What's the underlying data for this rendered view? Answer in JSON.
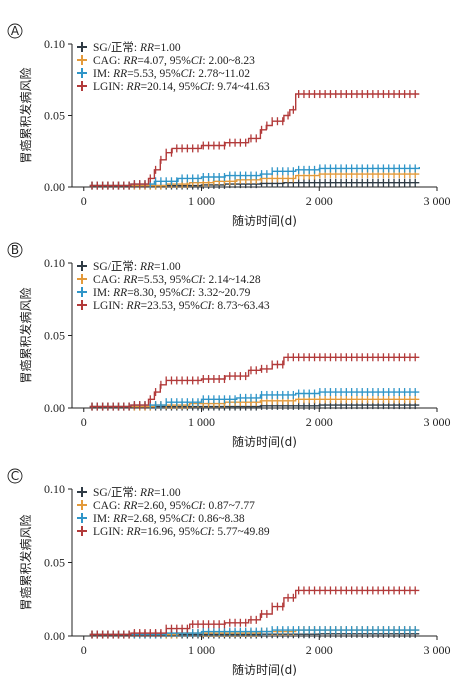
{
  "chart_data": [
    {
      "type": "line",
      "panel_label": "A",
      "xlabel": "随访时间(d)",
      "ylabel": "胃癌累积发病风险",
      "xlim": [
        -100,
        3000
      ],
      "ylim": [
        0,
        0.1
      ],
      "xticks": [
        0,
        1000,
        2000,
        3000
      ],
      "xtick_labels": [
        "0",
        "1 000",
        "2 000",
        "3 000"
      ],
      "yticks": [
        0,
        0.05,
        0.1
      ],
      "ytick_labels": [
        "0.00",
        "0.05",
        "0.10"
      ],
      "legend_position": "top-left",
      "series": [
        {
          "name": "SG/正常",
          "legend": "SG/正常: RR=1.00",
          "color": "#2f3b45",
          "x": [
            50,
            500,
            800,
            1000,
            1200,
            1500,
            1700,
            2000,
            2850
          ],
          "y": [
            0.001,
            0.001,
            0.001,
            0.0015,
            0.002,
            0.0025,
            0.003,
            0.003,
            0.003
          ]
        },
        {
          "name": "CAG",
          "legend": "CAG: RR=4.07, 95%CI: 2.00~8.23",
          "color": "#e39a3b",
          "x": [
            50,
            400,
            700,
            900,
            1100,
            1300,
            1500,
            1800,
            2000,
            2850
          ],
          "y": [
            0.001,
            0.001,
            0.002,
            0.003,
            0.004,
            0.005,
            0.006,
            0.008,
            0.009,
            0.009
          ]
        },
        {
          "name": "IM",
          "legend": "IM: RR=5.53, 95%CI: 2.78~11.02",
          "color": "#2f95c8",
          "x": [
            50,
            400,
            600,
            800,
            1000,
            1200,
            1500,
            1600,
            1800,
            2000,
            2850
          ],
          "y": [
            0.001,
            0.002,
            0.004,
            0.006,
            0.007,
            0.008,
            0.009,
            0.011,
            0.012,
            0.013,
            0.014
          ]
        },
        {
          "name": "LGIN",
          "legend": "LGIN: RR=20.14, 95%CI: 9.74~41.63",
          "color": "#b23a3a",
          "x": [
            50,
            400,
            550,
            600,
            650,
            700,
            750,
            1000,
            1200,
            1400,
            1500,
            1550,
            1600,
            1700,
            1750,
            1800,
            2850
          ],
          "y": [
            0.001,
            0.002,
            0.006,
            0.012,
            0.019,
            0.024,
            0.027,
            0.029,
            0.031,
            0.034,
            0.04,
            0.043,
            0.046,
            0.05,
            0.054,
            0.065,
            0.065
          ]
        }
      ]
    },
    {
      "type": "line",
      "panel_label": "B",
      "xlabel": "随访时间(d)",
      "ylabel": "胃癌累积发病风险",
      "xlim": [
        -100,
        3000
      ],
      "ylim": [
        0,
        0.1
      ],
      "xticks": [
        0,
        1000,
        2000,
        3000
      ],
      "xtick_labels": [
        "0",
        "1 000",
        "2 000",
        "3 000"
      ],
      "yticks": [
        0,
        0.05,
        0.1
      ],
      "ytick_labels": [
        "0.00",
        "0.05",
        "0.10"
      ],
      "legend_position": "top-left",
      "series": [
        {
          "name": "SG/正常",
          "legend": "SG/正常: RR=1.00",
          "color": "#2f3b45",
          "x": [
            50,
            500,
            1000,
            1500,
            2000,
            2850
          ],
          "y": [
            0.001,
            0.001,
            0.001,
            0.0015,
            0.002,
            0.002
          ]
        },
        {
          "name": "CAG",
          "legend": "CAG: RR=5.53, 95%CI: 2.14~14.28",
          "color": "#e39a3b",
          "x": [
            50,
            600,
            900,
            1200,
            1500,
            1800,
            2850
          ],
          "y": [
            0.001,
            0.002,
            0.003,
            0.004,
            0.005,
            0.006,
            0.006
          ]
        },
        {
          "name": "IM",
          "legend": "IM: RR=8.30, 95%CI: 3.32~20.79",
          "color": "#2f95c8",
          "x": [
            50,
            400,
            700,
            1000,
            1300,
            1500,
            1800,
            2000,
            2850
          ],
          "y": [
            0.001,
            0.002,
            0.004,
            0.006,
            0.007,
            0.009,
            0.01,
            0.011,
            0.011
          ]
        },
        {
          "name": "LGIN",
          "legend": "LGIN: RR=23.53, 95%CI: 8.73~63.43",
          "color": "#b23a3a",
          "x": [
            50,
            400,
            550,
            600,
            650,
            700,
            1000,
            1200,
            1400,
            1500,
            1600,
            1700,
            2850
          ],
          "y": [
            0.001,
            0.002,
            0.006,
            0.011,
            0.016,
            0.019,
            0.02,
            0.022,
            0.026,
            0.027,
            0.03,
            0.035,
            0.035
          ]
        }
      ]
    },
    {
      "type": "line",
      "panel_label": "C",
      "xlabel": "随访时间(d)",
      "ylabel": "胃癌累积发病风险",
      "xlim": [
        -100,
        3000
      ],
      "ylim": [
        0,
        0.1
      ],
      "xticks": [
        0,
        1000,
        2000,
        3000
      ],
      "xtick_labels": [
        "0",
        "1 000",
        "2 000",
        "3 000"
      ],
      "yticks": [
        0,
        0.05,
        0.1
      ],
      "ytick_labels": [
        "0.00",
        "0.05",
        "0.10"
      ],
      "legend_position": "top-left",
      "series": [
        {
          "name": "SG/正常",
          "legend": "SG/正常: RR=1.00",
          "color": "#2f3b45",
          "x": [
            50,
            1000,
            1500,
            2000,
            2850
          ],
          "y": [
            0.001,
            0.001,
            0.0012,
            0.0015,
            0.0015
          ]
        },
        {
          "name": "CAG",
          "legend": "CAG: RR=2.60, 95%CI: 0.87~7.77",
          "color": "#e39a3b",
          "x": [
            50,
            800,
            1200,
            1500,
            1800,
            2850
          ],
          "y": [
            0.001,
            0.002,
            0.002,
            0.003,
            0.004,
            0.004
          ]
        },
        {
          "name": "IM",
          "legend": "IM: RR=2.68, 95%CI: 0.86~8.38",
          "color": "#2f95c8",
          "x": [
            50,
            700,
            1000,
            1300,
            1600,
            2000,
            2850
          ],
          "y": [
            0.001,
            0.002,
            0.003,
            0.003,
            0.004,
            0.004,
            0.004
          ]
        },
        {
          "name": "LGIN",
          "legend": "LGIN: RR=16.96, 95%CI: 5.77~49.89",
          "color": "#b23a3a",
          "x": [
            50,
            400,
            700,
            900,
            1200,
            1400,
            1500,
            1600,
            1700,
            1800,
            2850
          ],
          "y": [
            0.001,
            0.002,
            0.005,
            0.008,
            0.009,
            0.011,
            0.015,
            0.02,
            0.026,
            0.031,
            0.031
          ]
        }
      ]
    }
  ]
}
